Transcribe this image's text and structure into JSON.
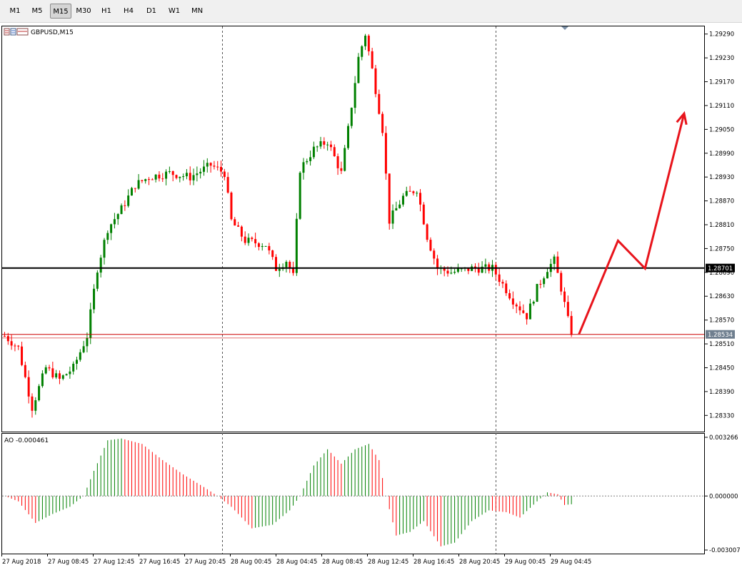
{
  "toolbar": {
    "timeframes": [
      "M1",
      "M5",
      "M15",
      "M30",
      "H1",
      "H4",
      "D1",
      "W1",
      "MN"
    ],
    "active": "M15"
  },
  "chart_data": {
    "type": "candlestick",
    "symbol_label": "GBPUSD,M15",
    "price_axis": {
      "ticks": [
        "1.29290",
        "1.29230",
        "1.29170",
        "1.29110",
        "1.29050",
        "1.28990",
        "1.28930",
        "1.28870",
        "1.28810",
        "1.28750",
        "1.28690",
        "1.28630",
        "1.28570",
        "1.28510",
        "1.28450",
        "1.28390",
        "1.28330"
      ],
      "range": [
        1.283,
        1.2932
      ]
    },
    "horizontal_lines": [
      {
        "price": 1.28701,
        "label": "1.28701",
        "color": "#000000"
      },
      {
        "price": 1.28534,
        "label": "1.28534",
        "color": "#cc0000"
      }
    ],
    "time_axis": {
      "ticks": [
        "27 Aug 2018",
        "27 Aug 08:45",
        "27 Aug 12:45",
        "27 Aug 16:45",
        "27 Aug 20:45",
        "28 Aug 00:45",
        "28 Aug 04:45",
        "28 Aug 08:45",
        "28 Aug 12:45",
        "28 Aug 16:45",
        "28 Aug 20:45",
        "29 Aug 00:45",
        "29 Aug 04:45"
      ]
    },
    "up_color": "#008000",
    "down_color": "#ff0000",
    "price_path": [
      [
        0,
        1.2853
      ],
      [
        4,
        1.285
      ],
      [
        8,
        1.2835
      ],
      [
        12,
        1.2845
      ],
      [
        16,
        1.2842
      ],
      [
        20,
        1.2845
      ],
      [
        24,
        1.2853
      ],
      [
        27,
        1.287
      ],
      [
        30,
        1.288
      ],
      [
        34,
        1.2885
      ],
      [
        38,
        1.2891
      ],
      [
        42,
        1.2893
      ],
      [
        48,
        1.2894
      ],
      [
        54,
        1.2893
      ],
      [
        60,
        1.2896
      ],
      [
        64,
        1.2894
      ],
      [
        66,
        1.2882
      ],
      [
        70,
        1.2877
      ],
      [
        76,
        1.2876
      ],
      [
        79,
        1.287
      ],
      [
        82,
        1.2872
      ],
      [
        84,
        1.2868
      ],
      [
        86,
        1.2895
      ],
      [
        90,
        1.29
      ],
      [
        94,
        1.2902
      ],
      [
        98,
        1.2894
      ],
      [
        100,
        1.2905
      ],
      [
        103,
        1.2923
      ],
      [
        105,
        1.2929
      ],
      [
        107,
        1.292
      ],
      [
        110,
        1.2905
      ],
      [
        112,
        1.2882
      ],
      [
        116,
        1.2888
      ],
      [
        120,
        1.289
      ],
      [
        123,
        1.2878
      ],
      [
        126,
        1.287
      ],
      [
        130,
        1.2869
      ],
      [
        136,
        1.287
      ],
      [
        142,
        1.287
      ],
      [
        148,
        1.2862
      ],
      [
        152,
        1.2858
      ],
      [
        155,
        1.2865
      ],
      [
        158,
        1.287
      ],
      [
        160,
        1.2872
      ],
      [
        162,
        1.2865
      ],
      [
        164,
        1.2857
      ],
      [
        165,
        1.2854
      ]
    ],
    "ao_indicator": {
      "label": "AO -0.000461",
      "value": -0.000461,
      "ticks": [
        "0.003266",
        "0.000000",
        "-0.003007"
      ],
      "range": [
        -0.003007,
        0.003266
      ],
      "path": [
        [
          0,
          0.0
        ],
        [
          4,
          -0.0003
        ],
        [
          9,
          -0.0015
        ],
        [
          14,
          -0.001
        ],
        [
          19,
          -0.0006
        ],
        [
          23,
          0.0
        ],
        [
          26,
          0.0014
        ],
        [
          30,
          0.0031
        ],
        [
          34,
          0.0032
        ],
        [
          40,
          0.0029
        ],
        [
          46,
          0.002
        ],
        [
          52,
          0.0012
        ],
        [
          58,
          0.0005
        ],
        [
          62,
          0.0
        ],
        [
          66,
          -0.0006
        ],
        [
          72,
          -0.0018
        ],
        [
          78,
          -0.0016
        ],
        [
          83,
          -0.0008
        ],
        [
          86,
          0.0
        ],
        [
          90,
          0.0017
        ],
        [
          94,
          0.0026
        ],
        [
          98,
          0.0018
        ],
        [
          102,
          0.0026
        ],
        [
          106,
          0.0029
        ],
        [
          109,
          0.002
        ],
        [
          111,
          0.0
        ],
        [
          114,
          -0.0022
        ],
        [
          118,
          -0.002
        ],
        [
          122,
          -0.0014
        ],
        [
          127,
          -0.0028
        ],
        [
          131,
          -0.0026
        ],
        [
          136,
          -0.0014
        ],
        [
          141,
          -0.0008
        ],
        [
          146,
          -0.0009
        ],
        [
          150,
          -0.0012
        ],
        [
          155,
          -0.0003
        ],
        [
          158,
          0.0002
        ],
        [
          161,
          0.0001
        ],
        [
          163,
          -0.0005
        ],
        [
          165,
          -0.000461
        ]
      ]
    },
    "annotation_arrow": {
      "color": "#e8141c",
      "path": [
        [
          1.28534,
          0
        ],
        [
          1.2877,
          6.5
        ],
        [
          1.287,
          11
        ],
        [
          1.2909,
          17.5
        ]
      ]
    }
  }
}
